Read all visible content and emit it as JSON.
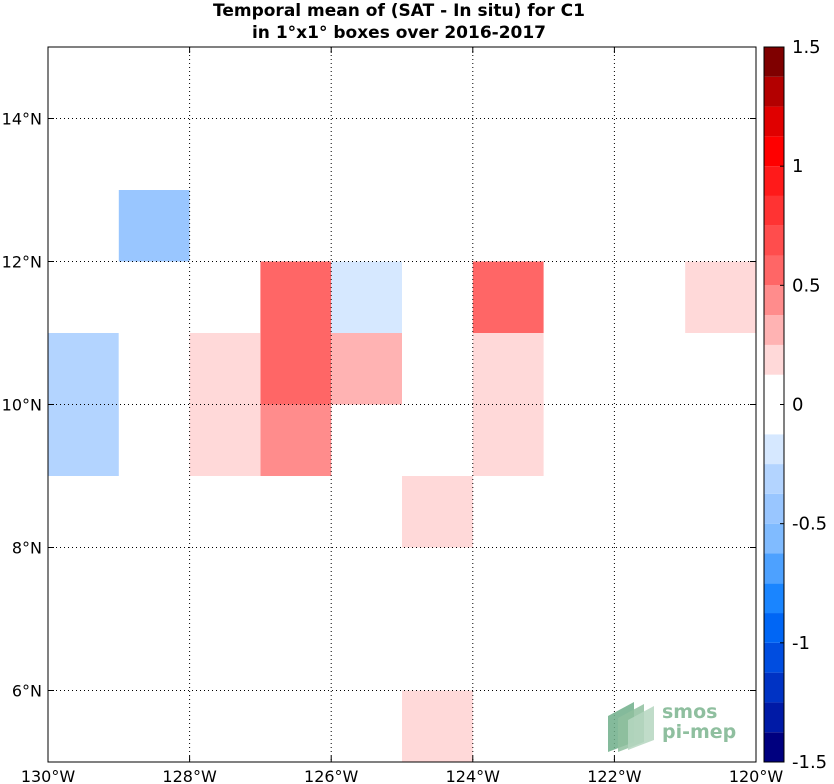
{
  "chart_data": {
    "type": "heatmap",
    "title_lines": [
      "Temporal mean of (SAT - In situ) for C1",
      "in 1°x1° boxes over 2016-2017"
    ],
    "x_range": [
      -130,
      -120
    ],
    "y_range": [
      5,
      15
    ],
    "x_ticks": [
      {
        "value": -130,
        "label": "130°W"
      },
      {
        "value": -128,
        "label": "128°W"
      },
      {
        "value": -126,
        "label": "126°W"
      },
      {
        "value": -124,
        "label": "124°W"
      },
      {
        "value": -122,
        "label": "122°W"
      },
      {
        "value": -120,
        "label": "120°W"
      }
    ],
    "y_ticks": [
      {
        "value": 6,
        "label": "6°N"
      },
      {
        "value": 8,
        "label": "8°N"
      },
      {
        "value": 10,
        "label": "10°N"
      },
      {
        "value": 12,
        "label": "12°N"
      },
      {
        "value": 14,
        "label": "14°N"
      }
    ],
    "grid": true,
    "cell_size_deg": 1,
    "cells": [
      {
        "lon": -129,
        "lat": 12,
        "value": -0.4
      },
      {
        "lon": -127,
        "lat": 11,
        "value": 0.5
      },
      {
        "lon": -127,
        "lat": 10,
        "value": 0.5
      },
      {
        "lon": -127,
        "lat": 9,
        "value": 0.4
      },
      {
        "lon": -126,
        "lat": 11,
        "value": -0.2
      },
      {
        "lon": -124,
        "lat": 11,
        "value": 0.5
      },
      {
        "lon": -121,
        "lat": 11,
        "value": 0.2
      },
      {
        "lon": -130,
        "lat": 10,
        "value": -0.3
      },
      {
        "lon": -130,
        "lat": 9,
        "value": -0.3
      },
      {
        "lon": -129,
        "lat": 10,
        "value": -0.1
      },
      {
        "lon": -128,
        "lat": 10,
        "value": 0.2
      },
      {
        "lon": -128,
        "lat": 9,
        "value": 0.2
      },
      {
        "lon": -126,
        "lat": 10,
        "value": 0.3
      },
      {
        "lon": -125,
        "lat": 10,
        "value": -0.1
      },
      {
        "lon": -124,
        "lat": 10,
        "value": 0.2
      },
      {
        "lon": -124,
        "lat": 9,
        "value": 0.2
      },
      {
        "lon": -125,
        "lat": 8,
        "value": 0.2
      },
      {
        "lon": -125,
        "lat": 5,
        "value": 0.2
      }
    ],
    "colorbar": {
      "range": [
        -1.5,
        1.5
      ],
      "step": 0.125,
      "ticks": [
        {
          "value": 1.5,
          "label": "1.5"
        },
        {
          "value": 1,
          "label": "1"
        },
        {
          "value": 0.5,
          "label": "0.5"
        },
        {
          "value": 0,
          "label": "0"
        },
        {
          "value": -0.5,
          "label": "-0.5"
        },
        {
          "value": -1,
          "label": "-1"
        },
        {
          "value": -1.5,
          "label": "-1.5"
        }
      ],
      "colors_low_to_high": [
        "#00007f",
        "#001aa6",
        "#0033c4",
        "#004de0",
        "#0066f5",
        "#1a85ff",
        "#4da1ff",
        "#80bbff",
        "#99c6ff",
        "#b3d4ff",
        "#d6e8ff",
        "#ffffff",
        "#ffffff",
        "#ffd9d9",
        "#ffb3b3",
        "#ff8c8c",
        "#ff6666",
        "#ff4d4d",
        "#ff3333",
        "#ff1a1a",
        "#ff0000",
        "#e00000",
        "#b30000",
        "#7f0000"
      ]
    }
  },
  "logo": {
    "line1": "smos",
    "line2": "pi-mep",
    "colors": [
      "#6fae8a",
      "#8fbf9f",
      "#b5d6bf"
    ]
  }
}
